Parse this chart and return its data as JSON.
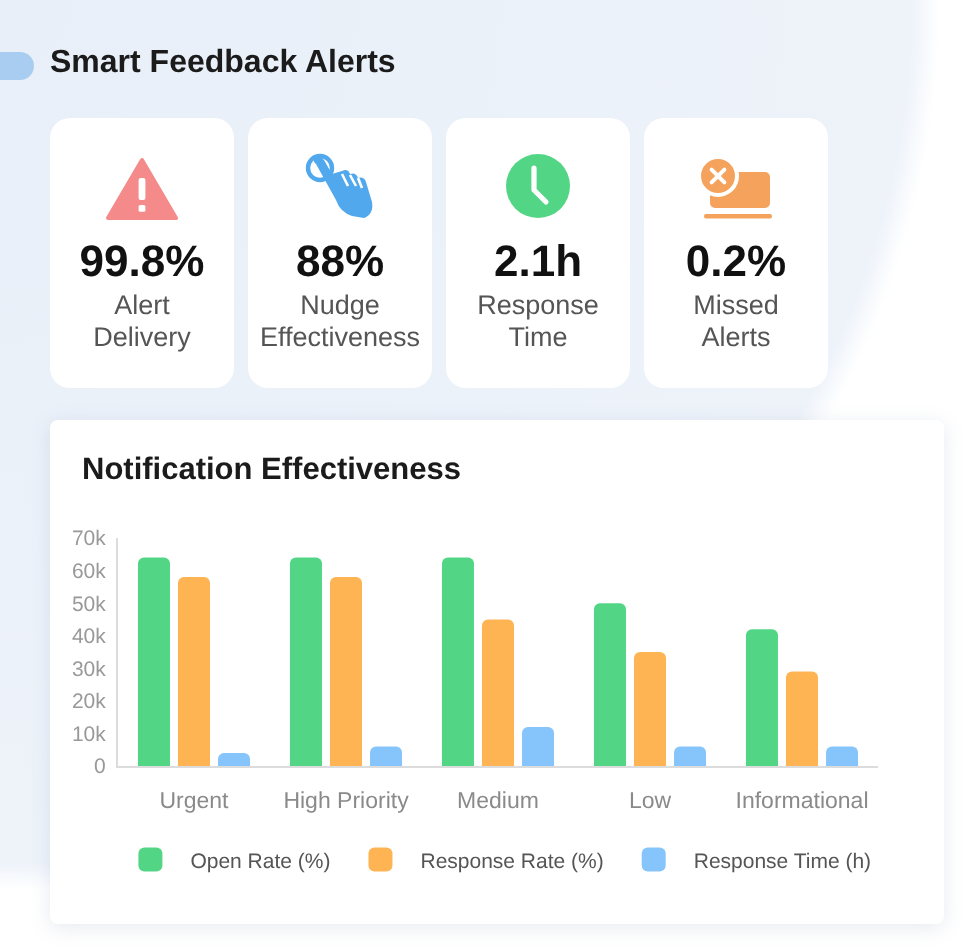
{
  "chart_data": [
    {
      "type": "other",
      "title": "Smart Feedback Alerts",
      "annotations": [
        "99.8%",
        "Alert Delivery",
        "88%",
        "Nudge Effectiveness",
        "2.1h",
        "Response Time",
        "0.2%",
        "Missed Alerts"
      ]
    },
    {
      "type": "bar",
      "title": "Notification Effectiveness",
      "categories": [
        "Urgent",
        "High Priority",
        "Medium",
        "Low",
        "Informational"
      ],
      "series": [
        {
          "name": "Open Rate (%)",
          "color": "#52d585",
          "values": [
            64000,
            64000,
            64000,
            50000,
            42000
          ]
        },
        {
          "name": "Response Rate (%)",
          "color": "#ffb454",
          "values": [
            58000,
            58000,
            45000,
            35000,
            29000
          ]
        },
        {
          "name": "Response Time (h)",
          "color": "#86c5fb",
          "values": [
            4000,
            6000,
            12000,
            6000,
            6000
          ]
        }
      ],
      "ylim": [
        0,
        70000
      ],
      "yticks": [
        0,
        {
          "value": 10000,
          "label": "10k"
        },
        {
          "value": 20000,
          "label": "20k"
        },
        {
          "value": 30000,
          "label": "30k"
        },
        {
          "value": 40000,
          "label": "40k"
        },
        {
          "value": 50000,
          "label": "50k"
        },
        {
          "value": 60000,
          "label": "60k"
        },
        {
          "value": 70000,
          "label": "70k"
        }
      ],
      "grid": false,
      "legend": "bottom"
    }
  ]
}
